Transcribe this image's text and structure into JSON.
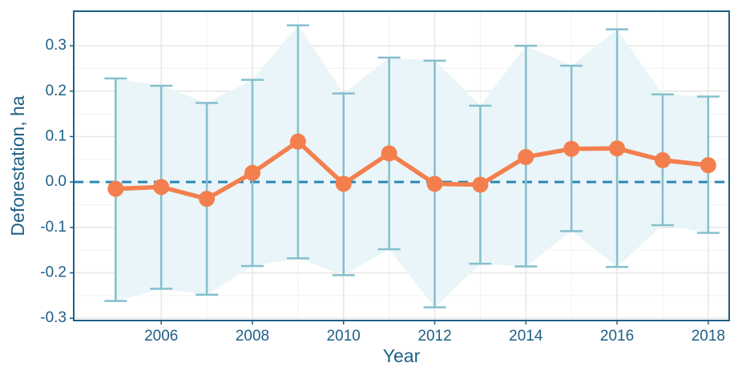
{
  "chart_data": {
    "type": "line",
    "x_label": "Year",
    "y_label": "Deforestation, ha",
    "x": [
      2005,
      2006,
      2007,
      2008,
      2009,
      2010,
      2011,
      2012,
      2013,
      2014,
      2015,
      2016,
      2017,
      2018
    ],
    "series": [
      {
        "color": "#f47f4e",
        "values": [
          -0.015,
          -0.011,
          -0.037,
          0.02,
          0.089,
          -0.004,
          0.063,
          -0.004,
          -0.006,
          0.055,
          0.073,
          0.074,
          0.048,
          0.037
        ],
        "upper": [
          0.228,
          0.212,
          0.174,
          0.225,
          0.345,
          0.195,
          0.274,
          0.267,
          0.168,
          0.3,
          0.256,
          0.336,
          0.193,
          0.188
        ],
        "lower": [
          -0.262,
          -0.235,
          -0.248,
          -0.185,
          -0.168,
          -0.205,
          -0.148,
          -0.276,
          -0.18,
          -0.186,
          -0.108,
          -0.187,
          -0.095,
          -0.112
        ],
        "error_color": "#84bfcc",
        "band_color": "#e9f5f8"
      }
    ],
    "reference_line": {
      "value": 0,
      "color": "#2b86b3",
      "dashed": true
    },
    "xlim": [
      2004.08,
      2018.46
    ],
    "ylim": [
      -0.305,
      0.376
    ],
    "xticks": [
      2006,
      2008,
      2010,
      2012,
      2014,
      2016,
      2018
    ],
    "yticks": [
      -0.3,
      -0.2,
      -0.1,
      {
        "value": 0,
        "label": "0.0"
      },
      0.1,
      0.2,
      0.3
    ],
    "grid": true
  }
}
